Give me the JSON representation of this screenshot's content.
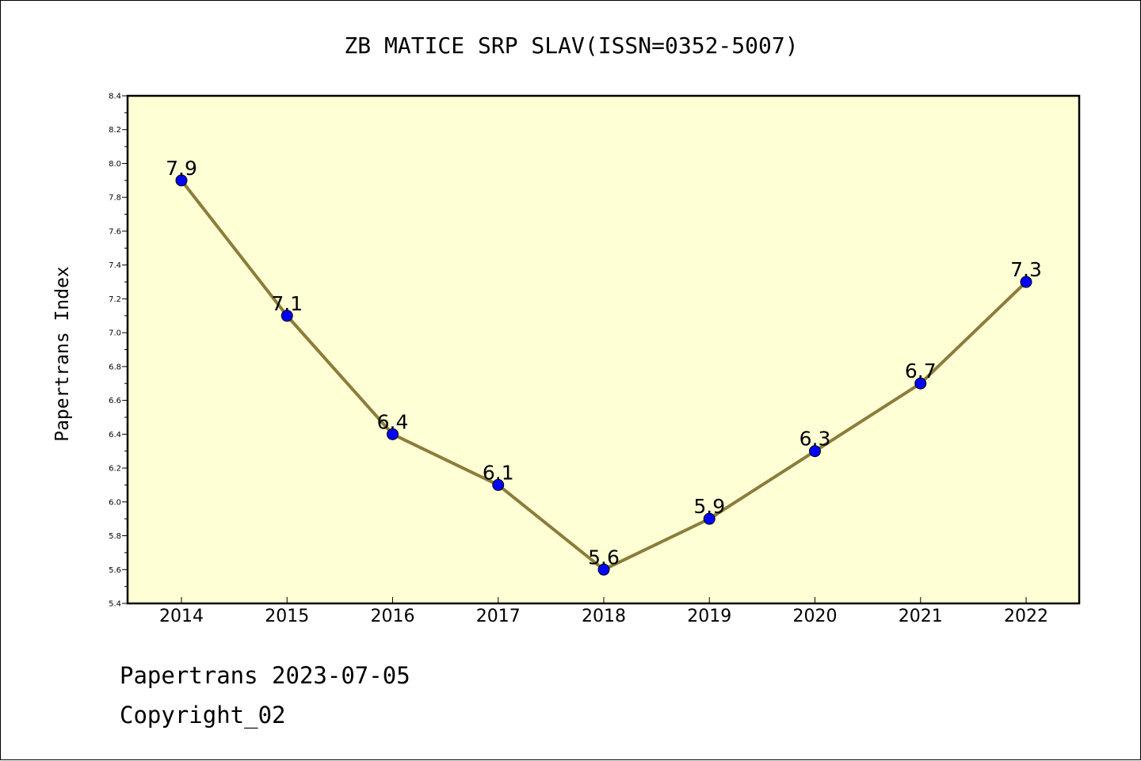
{
  "chart_data": {
    "type": "line",
    "title": "ZB MATICE SRP SLAV(ISSN=0352-5007)",
    "ylabel": "Papertrans Index",
    "xlabel": "",
    "categories": [
      "2014",
      "2015",
      "2016",
      "2017",
      "2018",
      "2019",
      "2020",
      "2021",
      "2022"
    ],
    "series": [
      {
        "values": [
          7.9,
          7.1,
          6.4,
          6.1,
          5.6,
          5.9,
          6.3,
          6.7,
          7.3
        ]
      }
    ],
    "data_labels": [
      "7.9",
      "7.1",
      "6.4",
      "6.1",
      "5.6",
      "5.9",
      "6.3",
      "6.7",
      "7.3"
    ],
    "ylim": [
      5.4,
      8.4
    ],
    "yticks": [
      "5.4",
      "5.6",
      "5.8",
      "6.0",
      "6.2",
      "6.4",
      "6.6",
      "6.8",
      "7.0",
      "7.2",
      "7.4",
      "7.6",
      "7.8",
      "8.0",
      "8.2",
      "8.4"
    ],
    "grid": false,
    "colors": {
      "plot_background": "#ffffd5",
      "line": "#8b7d3a",
      "marker": "#0000ff"
    }
  },
  "footer": {
    "line1": "Papertrans 2023-07-05",
    "line2": "Copyright_02"
  }
}
